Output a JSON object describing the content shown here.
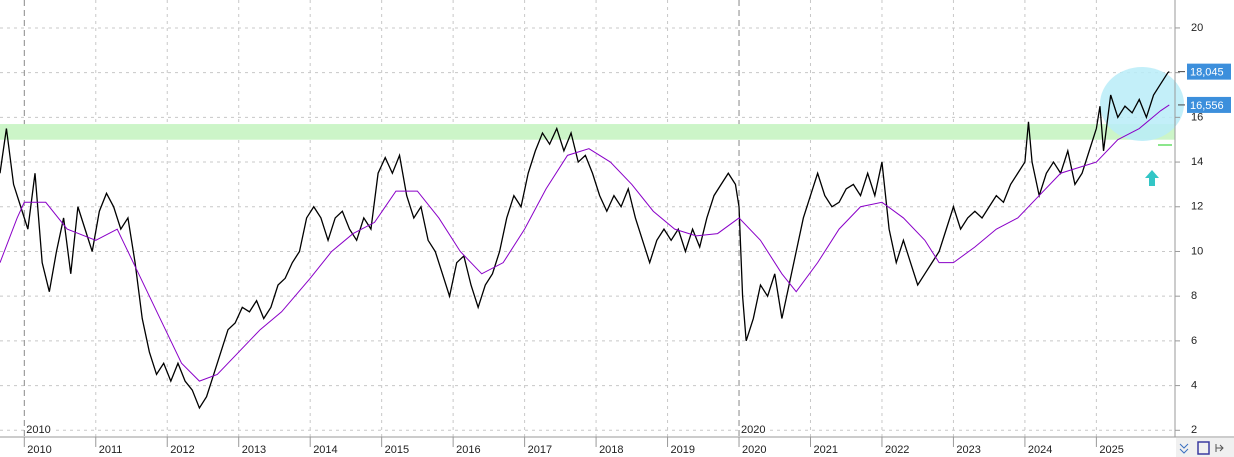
{
  "chart_data": {
    "type": "line",
    "xlim": [
      2009.66,
      2026.1
    ],
    "ylim": [
      1.7,
      21.25
    ],
    "xticks": [
      2010,
      2011,
      2012,
      2013,
      2014,
      2015,
      2016,
      2017,
      2018,
      2019,
      2020,
      2021,
      2022,
      2023,
      2024,
      2025
    ],
    "yticks": [
      2,
      4,
      6,
      8,
      10,
      12,
      14,
      16,
      18,
      20
    ],
    "grid": true,
    "band": [
      15,
      15.7
    ],
    "band_color": "#ccf5c8",
    "series": [
      {
        "color": "#000000",
        "last_label": "18,045",
        "x": [
          2009.66,
          2009.75,
          2009.85,
          2009.95,
          2010.05,
          2010.15,
          2010.25,
          2010.35,
          2010.45,
          2010.55,
          2010.65,
          2010.75,
          2010.85,
          2010.95,
          2011.05,
          2011.15,
          2011.25,
          2011.35,
          2011.45,
          2011.55,
          2011.65,
          2011.75,
          2011.85,
          2011.95,
          2012.05,
          2012.15,
          2012.25,
          2012.35,
          2012.45,
          2012.55,
          2012.65,
          2012.75,
          2012.85,
          2012.95,
          2013.05,
          2013.15,
          2013.25,
          2013.35,
          2013.45,
          2013.55,
          2013.65,
          2013.75,
          2013.85,
          2013.95,
          2014.05,
          2014.15,
          2014.25,
          2014.35,
          2014.45,
          2014.55,
          2014.65,
          2014.75,
          2014.85,
          2014.95,
          2015.05,
          2015.15,
          2015.25,
          2015.35,
          2015.45,
          2015.55,
          2015.65,
          2015.75,
          2015.85,
          2015.95,
          2016.05,
          2016.15,
          2016.25,
          2016.35,
          2016.45,
          2016.55,
          2016.65,
          2016.75,
          2016.85,
          2016.95,
          2017.05,
          2017.15,
          2017.25,
          2017.35,
          2017.45,
          2017.55,
          2017.65,
          2017.75,
          2017.85,
          2017.95,
          2018.05,
          2018.15,
          2018.25,
          2018.35,
          2018.45,
          2018.55,
          2018.65,
          2018.75,
          2018.85,
          2018.95,
          2019.05,
          2019.15,
          2019.25,
          2019.35,
          2019.45,
          2019.55,
          2019.65,
          2019.75,
          2019.85,
          2019.95,
          2020.0,
          2020.05,
          2020.1,
          2020.2,
          2020.3,
          2020.4,
          2020.5,
          2020.6,
          2020.7,
          2020.8,
          2020.9,
          2021.0,
          2021.1,
          2021.2,
          2021.3,
          2021.4,
          2021.5,
          2021.6,
          2021.7,
          2021.8,
          2021.9,
          2022.0,
          2022.1,
          2022.2,
          2022.3,
          2022.4,
          2022.5,
          2022.6,
          2022.7,
          2022.8,
          2022.9,
          2023.0,
          2023.1,
          2023.2,
          2023.3,
          2023.4,
          2023.5,
          2023.6,
          2023.7,
          2023.8,
          2023.9,
          2024.0,
          2024.05,
          2024.1,
          2024.2,
          2024.3,
          2024.4,
          2024.5,
          2024.6,
          2024.7,
          2024.8,
          2024.9,
          2025.0,
          2025.05,
          2025.1,
          2025.2,
          2025.3,
          2025.4,
          2025.5,
          2025.6,
          2025.7,
          2025.8,
          2025.9,
          2026.0,
          2026.02
        ],
        "values": [
          13.5,
          15.5,
          13,
          12,
          11,
          13.5,
          9.5,
          8.2,
          10,
          11.5,
          9,
          12,
          11,
          10,
          11.8,
          12.6,
          12,
          11,
          11.5,
          9.5,
          7,
          5.5,
          4.5,
          5,
          4.2,
          5,
          4.2,
          3.8,
          3,
          3.5,
          4.5,
          5.5,
          6.5,
          6.8,
          7.5,
          7.3,
          7.8,
          7,
          7.5,
          8.5,
          8.8,
          9.5,
          10,
          11.5,
          12,
          11.5,
          10.5,
          11.5,
          11.8,
          11,
          10.5,
          11.5,
          11,
          13.5,
          14.2,
          13.5,
          14.3,
          12.5,
          11.5,
          12,
          10.5,
          10,
          9,
          8,
          9.5,
          9.8,
          8.5,
          7.5,
          8.5,
          9,
          10,
          11.5,
          12.5,
          12,
          13.5,
          14.5,
          15.3,
          14.8,
          15.5,
          14.5,
          15.3,
          14,
          14.3,
          13.5,
          12.5,
          11.8,
          12.5,
          12,
          12.8,
          11.5,
          10.5,
          9.5,
          10.5,
          11,
          10.5,
          11,
          10,
          11,
          10.2,
          11.5,
          12.5,
          13,
          13.5,
          13,
          12,
          8,
          6,
          7,
          8.5,
          8,
          9,
          7,
          8.5,
          10,
          11.5,
          12.5,
          13.5,
          12.5,
          12,
          12.2,
          12.8,
          13,
          12.5,
          13.5,
          12.5,
          14,
          11,
          9.5,
          10.5,
          9.5,
          8.5,
          9,
          9.5,
          10,
          11,
          12,
          11,
          11.5,
          11.8,
          11.5,
          12,
          12.5,
          12.2,
          13,
          13.5,
          14,
          15.8,
          14,
          12.5,
          13.5,
          14,
          13.5,
          14.5,
          13,
          13.5,
          14.5,
          15.5,
          16.5,
          14.5,
          17,
          16,
          16.5,
          16.2,
          16.8,
          16,
          17,
          17.5,
          18,
          18.045
        ]
      },
      {
        "color": "#8a00c8",
        "last_label": "16,556",
        "x": [
          2009.66,
          2009.9,
          2010.0,
          2010.3,
          2010.6,
          2011.0,
          2011.3,
          2011.6,
          2011.9,
          2012.2,
          2012.45,
          2012.7,
          2013.0,
          2013.3,
          2013.6,
          2014.0,
          2014.3,
          2014.6,
          2014.9,
          2015.2,
          2015.5,
          2015.8,
          2016.1,
          2016.4,
          2016.7,
          2017.0,
          2017.3,
          2017.6,
          2017.9,
          2018.2,
          2018.5,
          2018.8,
          2019.1,
          2019.4,
          2019.7,
          2020.0,
          2020.3,
          2020.6,
          2020.8,
          2021.1,
          2021.4,
          2021.7,
          2022.0,
          2022.3,
          2022.6,
          2022.8,
          2023.0,
          2023.3,
          2023.6,
          2023.9,
          2024.2,
          2024.5,
          2024.8,
          2025.0,
          2025.3,
          2025.6,
          2025.9,
          2026.02
        ],
        "values": [
          9.5,
          11.5,
          12.2,
          12.2,
          11,
          10.5,
          11,
          9,
          7,
          5,
          4.2,
          4.5,
          5.5,
          6.5,
          7.3,
          8.8,
          10,
          10.8,
          11.3,
          12.7,
          12.7,
          11.5,
          10,
          9,
          9.5,
          11,
          12.8,
          14.3,
          14.6,
          14,
          13,
          11.8,
          11,
          10.7,
          10.8,
          11.5,
          10.5,
          9,
          8.2,
          9.5,
          11,
          12,
          12.2,
          11.5,
          10.5,
          9.5,
          9.5,
          10.2,
          11,
          11.5,
          12.5,
          13.5,
          13.8,
          14,
          15,
          15.5,
          16.3,
          16.556
        ]
      }
    ]
  }
}
